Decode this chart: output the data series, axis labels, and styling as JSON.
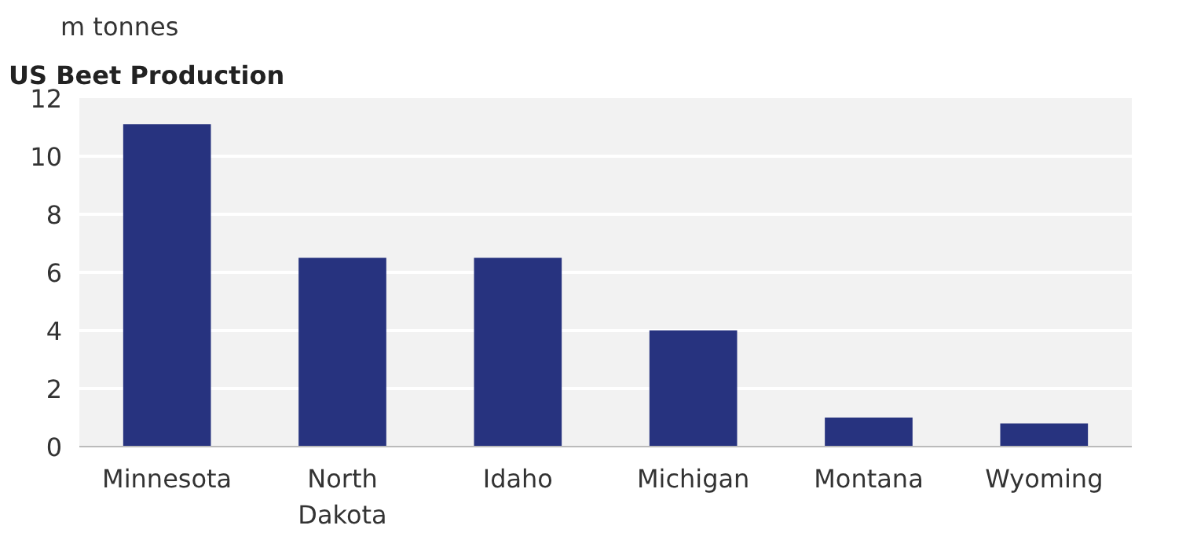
{
  "chart_data": {
    "type": "bar",
    "title": "US Beet Production",
    "ylabel": "m tonnes",
    "categories": [
      "Minnesota",
      "North Dakota",
      "Idaho",
      "Michigan",
      "Montana",
      "Wyoming"
    ],
    "values": [
      11.1,
      6.5,
      6.5,
      4.0,
      1.0,
      0.8
    ],
    "color": "#27337f",
    "ylim": [
      0,
      12
    ],
    "yticks": [
      0,
      2,
      4,
      6,
      8,
      10,
      12
    ],
    "grid": "y"
  }
}
